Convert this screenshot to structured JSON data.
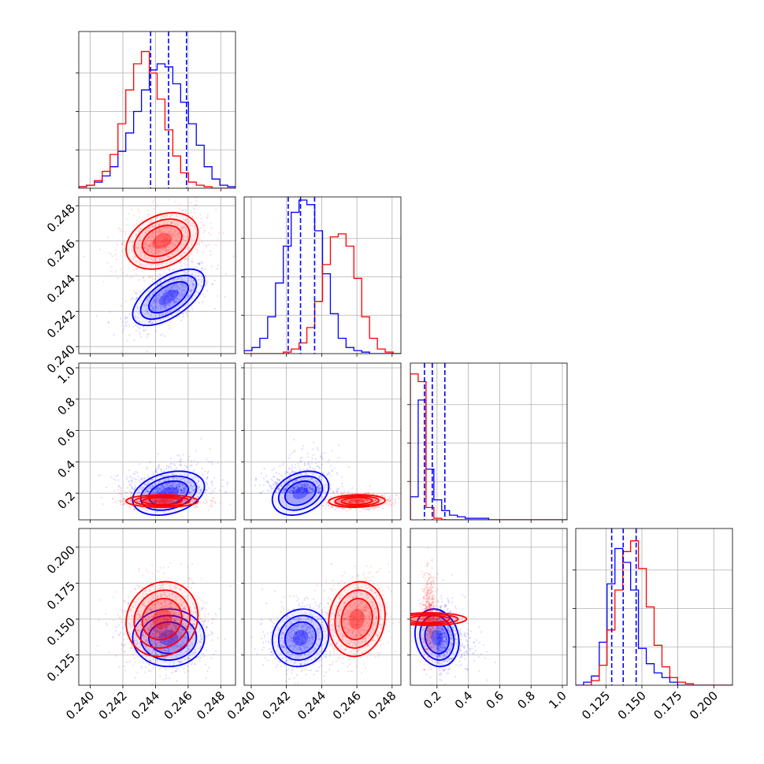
{
  "chart_data": {
    "type": "corner",
    "title": "",
    "grid": true,
    "series": [
      {
        "name": "",
        "color": "#0000ff"
      },
      {
        "name": "",
        "color": "#ff0000"
      }
    ],
    "parameters": [
      {
        "ticks": [
          0.24,
          0.242,
          0.244,
          0.246,
          0.248
        ],
        "tick_labels": [
          "0.240",
          "0.242",
          "0.244",
          "0.246",
          "0.248"
        ],
        "range": [
          0.2393,
          0.2489
        ]
      },
      {
        "ticks": [
          0.24,
          0.242,
          0.244,
          0.246,
          0.248
        ],
        "tick_labels": [
          "0.240",
          "0.242",
          "0.244",
          "0.246",
          "0.248"
        ],
        "range": [
          0.2396,
          0.2485
        ]
      },
      {
        "ticks": [
          0.2,
          0.4,
          0.6,
          0.8,
          1.0
        ],
        "tick_labels": [
          "0.2",
          "0.4",
          "0.6",
          "0.8",
          "1.0"
        ],
        "range": [
          0.03,
          1.03
        ]
      },
      {
        "ticks": [
          0.125,
          0.15,
          0.175,
          0.2
        ],
        "tick_labels": [
          "0.125",
          "0.150",
          "0.175",
          "0.200"
        ],
        "range": [
          0.104,
          0.213
        ]
      }
    ],
    "quantile_lines": {
      "color": "#0000ff",
      "values": [
        [
          0.2437,
          0.2448,
          0.2459
        ],
        [
          0.2421,
          0.2428,
          0.2436
        ],
        [
          0.12,
          0.17,
          0.25
        ],
        [
          0.129,
          0.137,
          0.146
        ]
      ]
    },
    "histograms": {
      "blue": [
        {
          "edges_start": 0.2393,
          "edges_end": 0.2489,
          "counts": [
            0.01,
            0.02,
            0.04,
            0.08,
            0.14,
            0.24,
            0.36,
            0.5,
            0.64,
            0.77,
            0.81,
            0.79,
            0.68,
            0.56,
            0.42,
            0.28,
            0.14,
            0.06,
            0.02,
            0.01
          ]
        },
        {
          "edges_start": 0.2396,
          "edges_end": 0.2485,
          "counts": [
            0.02,
            0.04,
            0.1,
            0.24,
            0.46,
            0.7,
            0.92,
            1.0,
            0.97,
            0.8,
            0.52,
            0.26,
            0.1,
            0.04,
            0.02,
            0.01,
            0.0,
            0.0,
            0.0,
            0.0
          ]
        },
        {
          "edges_start": 0.03,
          "edges_end": 1.03,
          "counts": [
            0.15,
            0.78,
            0.33,
            0.13,
            0.06,
            0.03,
            0.02,
            0.01,
            0.01,
            0.01,
            0.0,
            0.0,
            0.0,
            0.0,
            0.0,
            0.0,
            0.0,
            0.0,
            0.0,
            0.0
          ]
        },
        {
          "edges_start": 0.104,
          "edges_end": 0.213,
          "counts": [
            0.0,
            0.02,
            0.06,
            0.28,
            0.66,
            0.89,
            0.8,
            0.62,
            0.24,
            0.14,
            0.08,
            0.05,
            0.02,
            0.0,
            0.0,
            0.0,
            0.0,
            0.0,
            0.0,
            0.0
          ]
        }
      ],
      "red": [
        {
          "edges_start": 0.2393,
          "edges_end": 0.2489,
          "counts": [
            0.01,
            0.02,
            0.05,
            0.11,
            0.22,
            0.42,
            0.64,
            0.81,
            0.89,
            0.75,
            0.58,
            0.38,
            0.21,
            0.1,
            0.04,
            0.02,
            0.01,
            0.0,
            0.0,
            0.0
          ]
        },
        {
          "edges_start": 0.2396,
          "edges_end": 0.2485,
          "counts": [
            0.0,
            0.0,
            0.0,
            0.0,
            0.0,
            0.01,
            0.03,
            0.07,
            0.17,
            0.34,
            0.58,
            0.76,
            0.78,
            0.7,
            0.49,
            0.24,
            0.1,
            0.03,
            0.01,
            0.0
          ]
        },
        {
          "edges_start": 0.03,
          "edges_end": 1.03,
          "counts": [
            0.95,
            0.9,
            0.08,
            0.01,
            0.0,
            0.0,
            0.0,
            0.0,
            0.0,
            0.0,
            0.0,
            0.0,
            0.0,
            0.0,
            0.0,
            0.0,
            0.0,
            0.0,
            0.0,
            0.0
          ]
        },
        {
          "edges_start": 0.104,
          "edges_end": 0.213,
          "counts": [
            0.0,
            0.0,
            0.03,
            0.13,
            0.36,
            0.62,
            0.87,
            0.94,
            0.76,
            0.51,
            0.26,
            0.12,
            0.05,
            0.02,
            0.01,
            0.0,
            0.0,
            0.0,
            0.0,
            0.0
          ]
        }
      ]
    },
    "posteriors": {
      "blue": {
        "mean": [
          0.2448,
          0.2428,
          0.2,
          0.137
        ],
        "std": [
          0.0011,
          0.0008,
          0.07,
          0.01
        ],
        "corr": {
          "1-0": 0.6,
          "2-0": 0.3,
          "3-0": 0.0,
          "2-1": 0.3,
          "3-1": 0.1,
          "3-2": -0.15
        }
      },
      "red": {
        "mean": [
          0.2444,
          0.246,
          0.15,
          0.15
        ],
        "std": [
          0.0011,
          0.0008,
          0.02,
          0.013
        ],
        "corr": {
          "1-0": 0.3,
          "2-0": 0.0,
          "3-0": 0.1,
          "2-1": 0.1,
          "3-1": 0.1,
          "3-2": 0.0
        }
      }
    }
  }
}
